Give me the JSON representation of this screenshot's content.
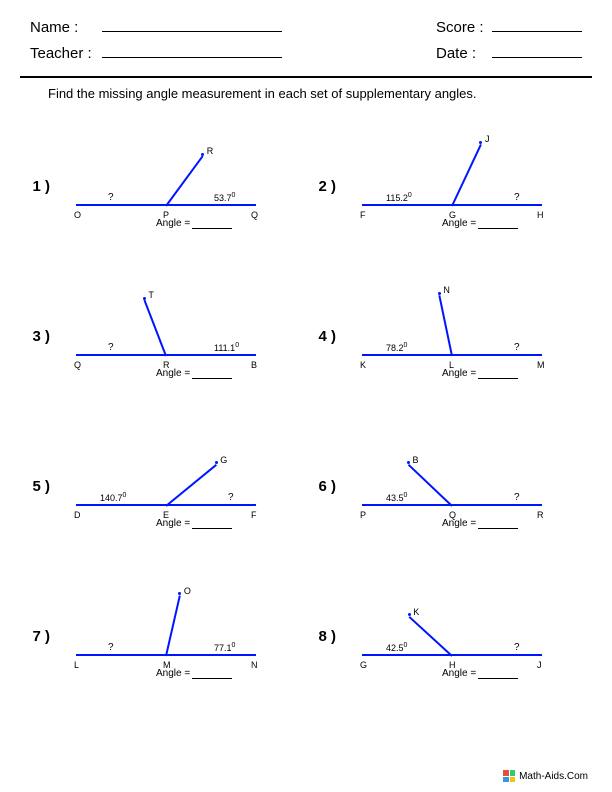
{
  "header": {
    "name_label": "Name :",
    "teacher_label": "Teacher :",
    "score_label": "Score :",
    "date_label": "Date :"
  },
  "instruction": "Find the missing angle measurement in each set of supplementary angles.",
  "answer_label": "Angle =",
  "footer": "Math-Aids.Com",
  "line_color": "#0015ff",
  "problems": [
    {
      "n": "1",
      "left_pt": "O",
      "mid_pt": "P",
      "right_pt": "Q",
      "ray_pt": "R",
      "angle_val": "53.7",
      "q_side": "left",
      "ray_angle_deg": 53.7,
      "ray_len": 62
    },
    {
      "n": "2",
      "left_pt": "F",
      "mid_pt": "G",
      "right_pt": "H",
      "ray_pt": "J",
      "angle_val": "115.2",
      "q_side": "right",
      "ray_angle_deg": 64.8,
      "ray_len": 68
    },
    {
      "n": "3",
      "left_pt": "Q",
      "mid_pt": "R",
      "right_pt": "B",
      "ray_pt": "T",
      "angle_val": "111.1",
      "q_side": "left",
      "ray_angle_deg": 111.1,
      "ray_len": 60
    },
    {
      "n": "4",
      "left_pt": "K",
      "mid_pt": "L",
      "right_pt": "M",
      "ray_pt": "N",
      "angle_val": "78.2",
      "q_side": "right",
      "ray_angle_deg": 101.8,
      "ray_len": 62
    },
    {
      "n": "5",
      "left_pt": "D",
      "mid_pt": "E",
      "right_pt": "F",
      "ray_pt": "G",
      "angle_val": "140.7",
      "q_side": "right",
      "ray_angle_deg": 39.3,
      "ray_len": 65
    },
    {
      "n": "6",
      "left_pt": "P",
      "mid_pt": "Q",
      "right_pt": "R",
      "ray_pt": "B",
      "angle_val": "43.5",
      "q_side": "right",
      "ray_angle_deg": 136.5,
      "ray_len": 60
    },
    {
      "n": "7",
      "left_pt": "L",
      "mid_pt": "M",
      "right_pt": "N",
      "ray_pt": "O",
      "angle_val": "77.1",
      "q_side": "left",
      "ray_angle_deg": 77.1,
      "ray_len": 62
    },
    {
      "n": "8",
      "left_pt": "G",
      "mid_pt": "H",
      "right_pt": "J",
      "ray_pt": "K",
      "angle_val": "42.5",
      "q_side": "right",
      "ray_angle_deg": 137.5,
      "ray_len": 58
    }
  ]
}
